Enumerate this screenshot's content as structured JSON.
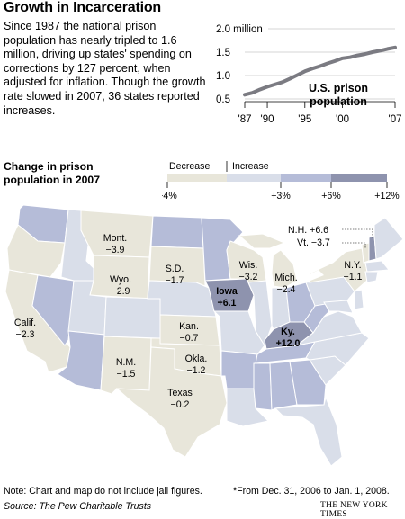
{
  "header": {
    "title": "Growth in Incarceration",
    "intro": "Since 1987 the national prison population has nearly tripled to 1.6 million, driving up states' spending on corrections by 127 percent, when adjusted for inflation. Though the growth rate slowed in 2007, 36 states reported increases."
  },
  "colors": {
    "decrease": "#e8e6da",
    "c0_3": "#d9dee9",
    "c3_6": "#b5bcd8",
    "c6_12": "#8e93ae",
    "line": "#7b7b82",
    "grid": "#c8c8c8"
  },
  "chart_data": {
    "type": "line",
    "ylabel_unit": "2.0 million",
    "yticks": [
      "1.5",
      "1.0",
      "0.5"
    ],
    "ylim": [
      0.5,
      2.0
    ],
    "xticks": [
      "'87",
      "'90",
      "'95",
      "'00",
      "'07"
    ],
    "xtick_years": [
      1987,
      1990,
      1995,
      2000,
      2007
    ],
    "x": [
      1987,
      1988,
      1989,
      1990,
      1991,
      1992,
      1993,
      1994,
      1995,
      1996,
      1997,
      1998,
      1999,
      2000,
      2001,
      2002,
      2003,
      2004,
      2005,
      2006,
      2007
    ],
    "y": [
      0.59,
      0.63,
      0.7,
      0.76,
      0.81,
      0.86,
      0.93,
      1.01,
      1.09,
      1.15,
      1.2,
      1.26,
      1.31,
      1.37,
      1.39,
      1.43,
      1.46,
      1.5,
      1.53,
      1.57,
      1.6
    ],
    "annotation": "U.S. prison population"
  },
  "legend": {
    "title": "Change in prison population in 2007",
    "decrease_label": "Decrease",
    "increase_label": "Increase",
    "ticks": [
      "−4%",
      "0",
      "+3%",
      "+6%",
      "+12%"
    ]
  },
  "map_labels": {
    "mont": {
      "name": "Mont.",
      "value": "−3.9"
    },
    "wyo": {
      "name": "Wyo.",
      "value": "−2.9"
    },
    "sd": {
      "name": "S.D.",
      "value": "−1.7"
    },
    "wis": {
      "name": "Wis.",
      "value": "−3.2"
    },
    "mich": {
      "name": "Mich.",
      "value": "−2.4"
    },
    "ny": {
      "name": "N.Y.",
      "value": "−1.1"
    },
    "nh": "N.H. +6.6",
    "vt": "Vt. −3.7",
    "iowa": {
      "name": "Iowa",
      "value": "+6.1"
    },
    "calif": {
      "name": "Calif.",
      "value": "−2.3"
    },
    "kan": {
      "name": "Kan.",
      "value": "−0.7"
    },
    "ky": {
      "name": "Ky.",
      "value": "+12.0"
    },
    "nm": {
      "name": "N.M.",
      "value": "−1.5"
    },
    "okla": {
      "name": "Okla.",
      "value": "−1.2"
    },
    "texas": {
      "name": "Texas",
      "value": "−0.2"
    }
  },
  "footer": {
    "note": "Note: Chart and map do not include jail figures.",
    "footnote": "*From Dec. 31, 2006 to Jan. 1, 2008.",
    "source": "Source: The Pew Charitable Trusts",
    "credit": "THE NEW YORK TIMES"
  }
}
